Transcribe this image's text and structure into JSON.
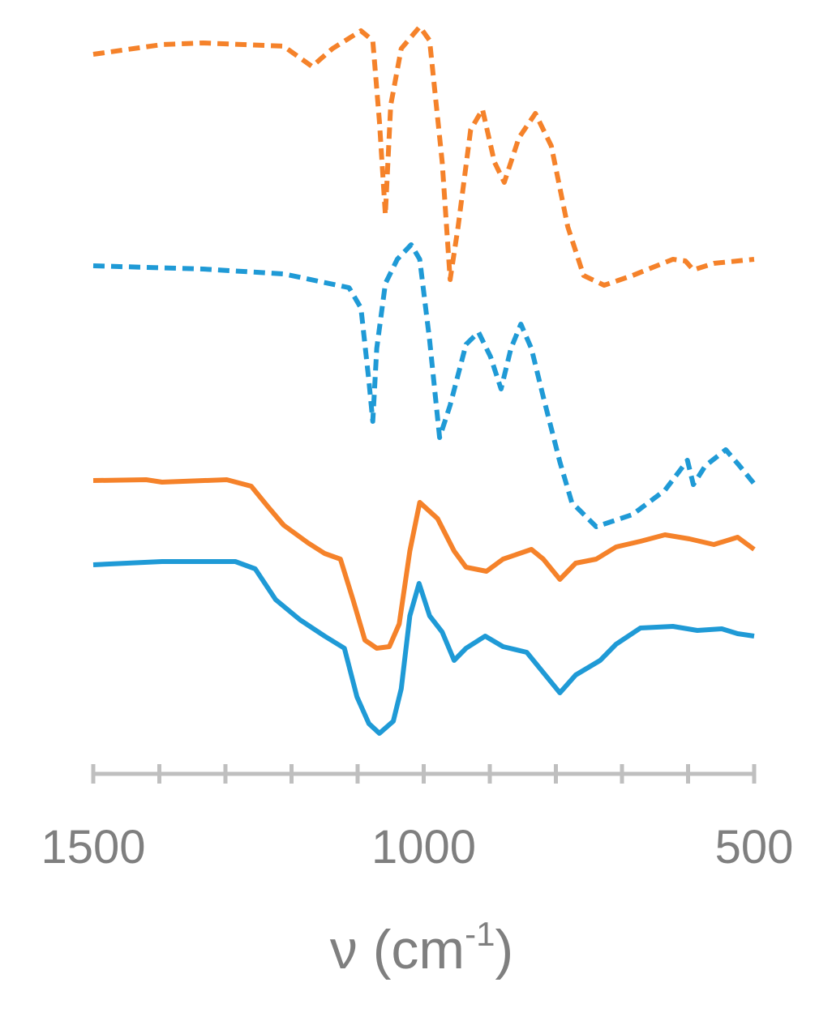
{
  "chart_data": {
    "type": "line",
    "xlabel": {
      "base": "ν (cm",
      "sup": "-1",
      "end": ")"
    },
    "xlim": [
      1500,
      500
    ],
    "xticks": [
      1500,
      1000,
      500
    ],
    "xminorticks": [
      1400,
      1300,
      1200,
      1100,
      900,
      800,
      700,
      600
    ],
    "ylim": [
      0,
      94
    ],
    "axis_color": "#bfbfbf",
    "series": [
      {
        "color": "#f5822a",
        "dash": true,
        "x": [
          1500,
          1396,
          1334,
          1212,
          1169,
          1138,
          1095,
          1077,
          1067,
          1058,
          1050,
          1034,
          1006,
          991,
          972,
          960,
          948,
          929,
          911,
          893,
          878,
          856,
          831,
          807,
          782,
          758,
          727,
          684,
          623,
          604,
          592,
          561,
          500
        ],
        "values": [
          88.8,
          90,
          90.2,
          89.8,
          87.3,
          89.5,
          91.7,
          90.5,
          80.5,
          69,
          82.5,
          89.5,
          92.2,
          90.5,
          75.5,
          61,
          67.5,
          79.5,
          82,
          75.5,
          73,
          78.5,
          81.5,
          77.5,
          67.5,
          61.5,
          60.3,
          61.5,
          63.5,
          63.3,
          62.2,
          63,
          63.5
        ]
      },
      {
        "color": "#1f9ad6",
        "dash": true,
        "x": [
          1500,
          1334,
          1212,
          1113,
          1095,
          1083,
          1077,
          1071,
          1058,
          1040,
          1019,
          1006,
          991,
          976,
          960,
          936,
          917,
          899,
          883,
          868,
          853,
          837,
          819,
          794,
          776,
          739,
          684,
          635,
          610,
          601,
          592,
          574,
          543,
          522,
          500
        ],
        "values": [
          62.7,
          62.3,
          61.7,
          60,
          57.5,
          48.5,
          43.5,
          52.5,
          60.5,
          63.5,
          65.3,
          63.5,
          53.5,
          41.5,
          45.5,
          53,
          54.5,
          51.5,
          47.5,
          52.5,
          55.5,
          52.5,
          46.5,
          38.5,
          33.5,
          30.5,
          32,
          35,
          37.7,
          38.7,
          35.7,
          38,
          40,
          38,
          35.8
        ]
      },
      {
        "color": "#f5822a",
        "dash": false,
        "x": [
          1500,
          1420,
          1396,
          1298,
          1261,
          1236,
          1212,
          1175,
          1150,
          1126,
          1107,
          1089,
          1071,
          1052,
          1037,
          1021,
          1006,
          979,
          954,
          936,
          905,
          880,
          837,
          819,
          794,
          770,
          739,
          709,
          672,
          635,
          598,
          561,
          525,
          500
        ],
        "values": [
          36.2,
          36.3,
          36,
          36.3,
          35.5,
          33,
          30.7,
          28.5,
          27.2,
          26.5,
          21.5,
          16.5,
          15.5,
          15.7,
          18.5,
          27.5,
          33.5,
          31.5,
          27.5,
          25.5,
          25,
          26.5,
          27.7,
          26.5,
          24,
          26,
          26.5,
          28,
          28.7,
          29.5,
          29,
          28.3,
          29.2,
          27.7
        ]
      },
      {
        "color": "#1f9ad6",
        "dash": false,
        "x": [
          1500,
          1396,
          1285,
          1255,
          1224,
          1187,
          1150,
          1120,
          1101,
          1083,
          1067,
          1046,
          1034,
          1021,
          1007,
          991,
          972,
          954,
          936,
          907,
          880,
          844,
          819,
          794,
          770,
          733,
          709,
          672,
          623,
          586,
          549,
          525,
          500
        ],
        "values": [
          25.8,
          26.2,
          26.2,
          25.3,
          21.5,
          19,
          17,
          15.5,
          9.5,
          6.2,
          5,
          6.5,
          10.5,
          19.5,
          23.5,
          19.5,
          17.5,
          14,
          15.5,
          17,
          15.7,
          15,
          12.5,
          10,
          12.2,
          14,
          16,
          18,
          18.2,
          17.7,
          17.9,
          17.3,
          17
        ]
      }
    ]
  }
}
